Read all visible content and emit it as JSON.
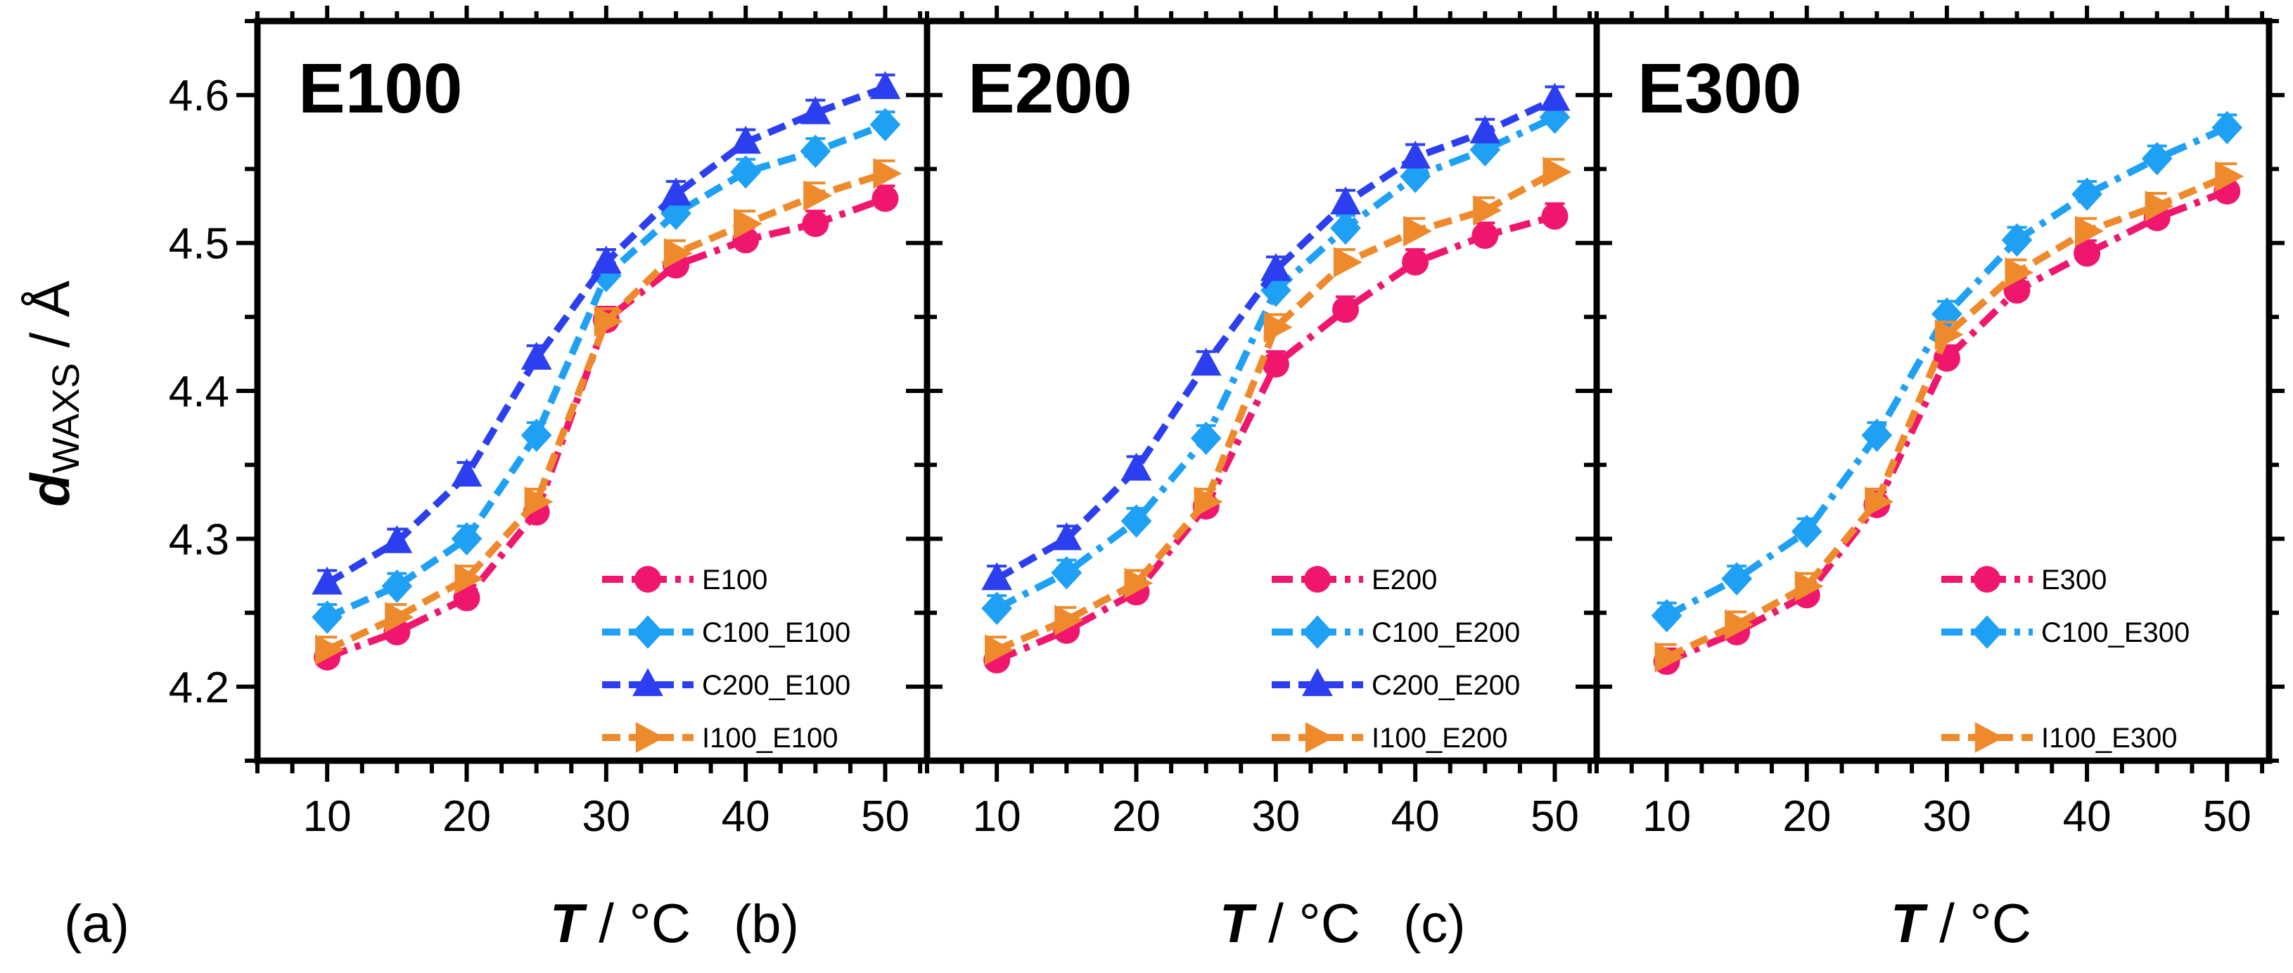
{
  "colors": {
    "E": "#f0166e",
    "C100": "#1ea0f5",
    "C200": "#2c3ff0",
    "I100": "#ef8a2c"
  },
  "y_axis": {
    "label_main": "d",
    "label_sub": "WAXS",
    "label_unit": " / Å"
  },
  "x_axis": {
    "label_main": "T",
    "label_unit": " / °C"
  },
  "chart_data": [
    {
      "type": "line",
      "panel_label": "(a)",
      "title": "E100",
      "x": [
        10,
        15,
        20,
        25,
        30,
        35,
        40,
        45,
        50
      ],
      "xlim": [
        5,
        53
      ],
      "ylim": [
        4.15,
        4.65
      ],
      "xticks": [
        10,
        20,
        30,
        40,
        50
      ],
      "yticks": [
        4.2,
        4.3,
        4.4,
        4.5,
        4.6
      ],
      "xlabel": "T / °C",
      "ylabel": "dWAXS / Å",
      "legend_position": "lower-right",
      "series": [
        {
          "name": "E100",
          "color_key": "E",
          "marker": "circle",
          "dash": "dashdot",
          "values": [
            4.22,
            4.237,
            4.26,
            4.318,
            4.448,
            4.485,
            4.502,
            4.513,
            4.53
          ]
        },
        {
          "name": "C100_E100",
          "color_key": "C100",
          "marker": "diamond",
          "dash": "dash",
          "values": [
            4.247,
            4.268,
            4.3,
            4.37,
            4.478,
            4.52,
            4.548,
            4.562,
            4.58
          ]
        },
        {
          "name": "C200_E100",
          "color_key": "C200",
          "marker": "triangle",
          "dash": "dash",
          "values": [
            4.27,
            4.298,
            4.343,
            4.422,
            4.487,
            4.533,
            4.568,
            4.588,
            4.605
          ]
        },
        {
          "name": "I100_E100",
          "color_key": "I100",
          "marker": "triangle-right",
          "dash": "dash",
          "values": [
            4.225,
            4.247,
            4.273,
            4.325,
            4.447,
            4.493,
            4.513,
            4.532,
            4.547
          ]
        }
      ]
    },
    {
      "type": "line",
      "panel_label": "(b)",
      "title": "E200",
      "x": [
        10,
        15,
        20,
        25,
        30,
        35,
        40,
        45,
        50
      ],
      "xlim": [
        5,
        53
      ],
      "ylim": [
        4.15,
        4.65
      ],
      "xticks": [
        10,
        20,
        30,
        40,
        50
      ],
      "yticks": [
        4.2,
        4.3,
        4.4,
        4.5,
        4.6
      ],
      "xlabel": "T / °C",
      "ylabel": "dWAXS / Å",
      "legend_position": "lower-right",
      "series": [
        {
          "name": "E200",
          "color_key": "E",
          "marker": "circle",
          "dash": "dashdot",
          "values": [
            4.218,
            4.238,
            4.264,
            4.322,
            4.418,
            4.455,
            4.487,
            4.505,
            4.518
          ]
        },
        {
          "name": "C100_E200",
          "color_key": "C100",
          "marker": "diamond",
          "dash": "dashdot",
          "values": [
            4.253,
            4.277,
            4.312,
            4.368,
            4.468,
            4.51,
            4.545,
            4.563,
            4.585
          ]
        },
        {
          "name": "C200_E200",
          "color_key": "C200",
          "marker": "triangle",
          "dash": "dash",
          "values": [
            4.273,
            4.3,
            4.347,
            4.418,
            4.482,
            4.527,
            4.558,
            4.575,
            4.597
          ]
        },
        {
          "name": "I100_E200",
          "color_key": "I100",
          "marker": "triangle-right",
          "dash": "dash",
          "values": [
            4.225,
            4.245,
            4.27,
            4.325,
            4.443,
            4.487,
            4.508,
            4.522,
            4.548
          ]
        }
      ]
    },
    {
      "type": "line",
      "panel_label": "(c)",
      "title": "E300",
      "x": [
        10,
        15,
        20,
        25,
        30,
        35,
        40,
        45,
        50
      ],
      "xlim": [
        5,
        53
      ],
      "ylim": [
        4.15,
        4.65
      ],
      "xticks": [
        10,
        20,
        30,
        40,
        50
      ],
      "yticks": [
        4.2,
        4.3,
        4.4,
        4.5,
        4.6
      ],
      "xlabel": "T / °C",
      "ylabel": "dWAXS / Å",
      "legend_position": "lower-right",
      "series": [
        {
          "name": "E300",
          "color_key": "E",
          "marker": "circle",
          "dash": "dashdot",
          "values": [
            4.217,
            4.237,
            4.262,
            4.323,
            4.422,
            4.468,
            4.493,
            4.517,
            4.535
          ]
        },
        {
          "name": "C100_E300",
          "color_key": "C100",
          "marker": "diamond",
          "dash": "dashdot",
          "values": [
            4.248,
            4.273,
            4.305,
            4.37,
            4.452,
            4.502,
            4.533,
            4.557,
            4.578
          ]
        },
        {
          "name": "I100_E300",
          "color_key": "I100",
          "marker": "triangle-right",
          "dash": "dash",
          "values": [
            4.22,
            4.242,
            4.268,
            4.325,
            4.438,
            4.48,
            4.508,
            4.525,
            4.545
          ]
        }
      ]
    }
  ]
}
